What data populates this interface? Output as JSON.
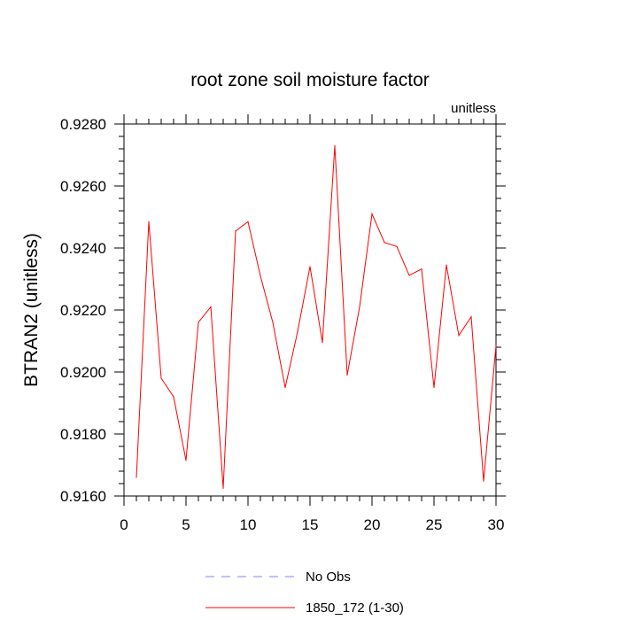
{
  "chart_data": {
    "type": "line",
    "title": "root zone soil moisture factor",
    "units_label": "unitless",
    "xlabel": "",
    "ylabel": "BTRAN2  (unitless)",
    "xlim": [
      0,
      30
    ],
    "ylim": [
      0.916,
      0.928
    ],
    "x_ticks": [
      0,
      5,
      10,
      15,
      20,
      25,
      30
    ],
    "x_tick_labels": [
      "0",
      "5",
      "10",
      "15",
      "20",
      "25",
      "30"
    ],
    "y_ticks": [
      0.916,
      0.918,
      0.92,
      0.922,
      0.924,
      0.926,
      0.928
    ],
    "y_tick_labels": [
      "0.9160",
      "0.9180",
      "0.9200",
      "0.9220",
      "0.9240",
      "0.9260",
      "0.9280"
    ],
    "grid": false,
    "legend": [
      {
        "label": "No Obs",
        "color": "#8080ff",
        "dash": true
      },
      {
        "label": "1850_172 (1-30)",
        "color": "#ff0000",
        "dash": false
      }
    ],
    "series": [
      {
        "name": "1850_172 (1-30)",
        "color": "#ff0000",
        "x": [
          1,
          2,
          3,
          4,
          5,
          6,
          7,
          8,
          9,
          10,
          11,
          12,
          13,
          14,
          15,
          16,
          17,
          18,
          19,
          20,
          21,
          22,
          23,
          24,
          25,
          26,
          27,
          28,
          29,
          30
        ],
        "values": [
          0.9166,
          0.92485,
          0.9198,
          0.9192,
          0.91715,
          0.9216,
          0.9221,
          0.91625,
          0.92455,
          0.92485,
          0.9231,
          0.9216,
          0.9195,
          0.9213,
          0.9234,
          0.92095,
          0.9273,
          0.9199,
          0.9221,
          0.9251,
          0.92418,
          0.92405,
          0.92312,
          0.92332,
          0.9195,
          0.92345,
          0.92118,
          0.92178,
          0.91648,
          0.92085
        ]
      }
    ]
  }
}
